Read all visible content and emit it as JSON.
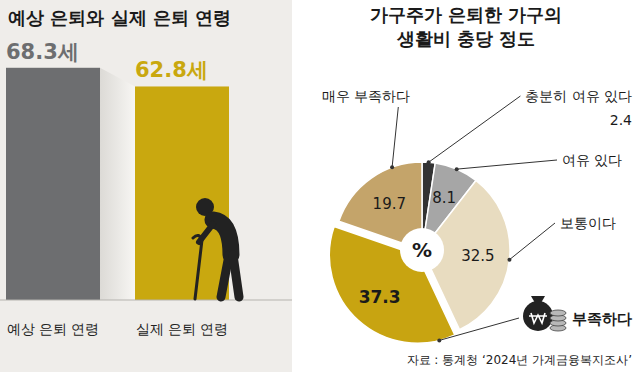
{
  "chart_data": [
    {
      "type": "bar",
      "title": "예상 은퇴와 실제 은퇴 연령",
      "categories": [
        "예상 은퇴 연령",
        "실제 은퇴 연령"
      ],
      "values": [
        68.3,
        62.8
      ],
      "value_labels": [
        "68.3세",
        "62.8세"
      ],
      "colors": [
        "#6d6e70",
        "#c9a80f"
      ],
      "ylim": [
        0,
        70
      ],
      "grid": false,
      "data_labels": true,
      "tick_labels": "x"
    },
    {
      "type": "pie",
      "title": "가구주가 은퇴한 가구의 생활비 충당 정도",
      "categories": [
        "충분히 여유 있다",
        "여유 있다",
        "보통이다",
        "부족하다",
        "매우 부족하다"
      ],
      "values": [
        2.4,
        8.1,
        32.5,
        37.3,
        19.7
      ],
      "colors": [
        "#333333",
        "#a6a6a6",
        "#e8dcc0",
        "#c8a411",
        "#c4a46a"
      ],
      "center_label": "%",
      "data_labels": true,
      "source": "자료 : 통계청 ‘2024년 가계금융복지조사’"
    }
  ]
}
